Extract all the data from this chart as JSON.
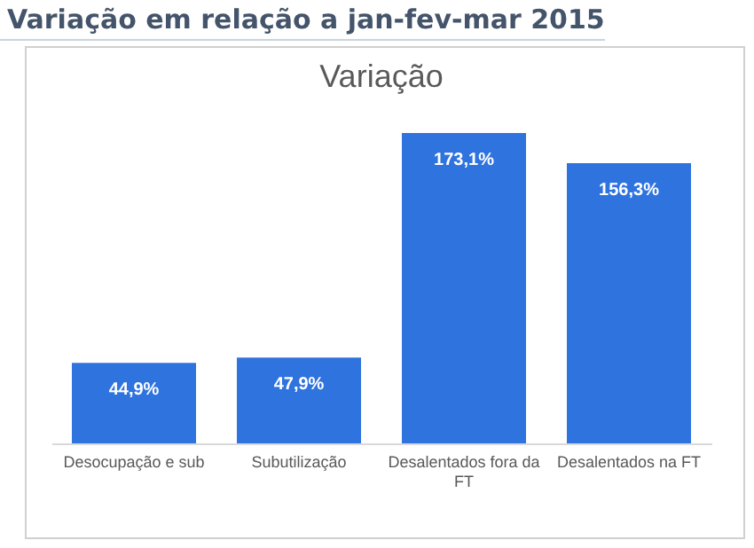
{
  "chart_data": {
    "type": "bar",
    "title": "Variação em relação a jan-fev-mar 2015",
    "subtitle": "Variação",
    "categories": [
      "Desocupação e sub",
      "Subutilização",
      "Desalentados fora da FT",
      "Desalentados na FT"
    ],
    "values": [
      44.9,
      47.9,
      173.1,
      156.3
    ],
    "value_labels": [
      "44,9%",
      "47,9%",
      "173,1%",
      "156,3%"
    ],
    "color": "#2f73de",
    "grid": false
  }
}
